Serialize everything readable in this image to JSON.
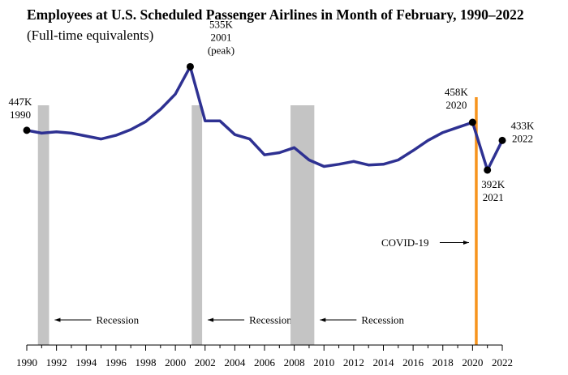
{
  "chart_data": {
    "type": "line",
    "title": "Employees at U.S. Scheduled Passenger Airlines in Month of February, 1990–2022",
    "subtitle": "(Full-time equivalents)",
    "xlabel": "",
    "ylabel": "",
    "xlim": [
      1990,
      2022
    ],
    "ylim": [
      150,
      560
    ],
    "y_axis_visible": false,
    "grid": false,
    "x_ticks": [
      1990,
      1992,
      1994,
      1996,
      1998,
      2000,
      2002,
      2004,
      2006,
      2008,
      2010,
      2012,
      2014,
      2016,
      2018,
      2020,
      2022
    ],
    "x_tick_labels": [
      "1990",
      "1992",
      "1994",
      "1996",
      "1998",
      "2000",
      "2002",
      "2004",
      "2006",
      "2008",
      "2010",
      "2012",
      "2014",
      "2016",
      "2018",
      "2020",
      "2022"
    ],
    "series": [
      {
        "name": "",
        "color": "#2e3192",
        "x": [
          1990,
          1991,
          1992,
          1993,
          1994,
          1995,
          1996,
          1997,
          1998,
          1999,
          2000,
          2001,
          2002,
          2003,
          2004,
          2005,
          2006,
          2007,
          2008,
          2009,
          2010,
          2011,
          2012,
          2013,
          2014,
          2015,
          2016,
          2017,
          2018,
          2019,
          2020,
          2021,
          2022
        ],
        "y": [
          447,
          443,
          445,
          443,
          439,
          435,
          440,
          448,
          459,
          476,
          497,
          535,
          460,
          460,
          441,
          435,
          413,
          416,
          423,
          406,
          397,
          400,
          404,
          399,
          400,
          406,
          419,
          433,
          444,
          451,
          458,
          392,
          433
        ]
      }
    ],
    "highlighted_points": [
      {
        "x": 1990,
        "y": 447,
        "label": [
          "447K",
          "1990"
        ]
      },
      {
        "x": 2001,
        "y": 535,
        "label": [
          "535K",
          "2001",
          "(peak)"
        ]
      },
      {
        "x": 2020,
        "y": 458,
        "label": [
          "458K",
          "2020"
        ]
      },
      {
        "x": 2021,
        "y": 392,
        "label": [
          "392K",
          "2021"
        ]
      },
      {
        "x": 2022,
        "y": 433,
        "label": [
          "433K",
          "2022"
        ]
      }
    ],
    "recessions": [
      {
        "start": 1990.75,
        "end": 1991.5,
        "label": "Recession",
        "arrow": "left"
      },
      {
        "start": 2001.1,
        "end": 2001.8,
        "label": "Recession",
        "arrow": "left"
      },
      {
        "start": 2007.75,
        "end": 2009.35,
        "label": "Recession",
        "arrow": "left"
      }
    ],
    "recession_color": "#c4c4c4",
    "event_line": {
      "x": 2020.25,
      "label": "COVID-19",
      "color": "#f7941d",
      "arrow": "right"
    }
  }
}
